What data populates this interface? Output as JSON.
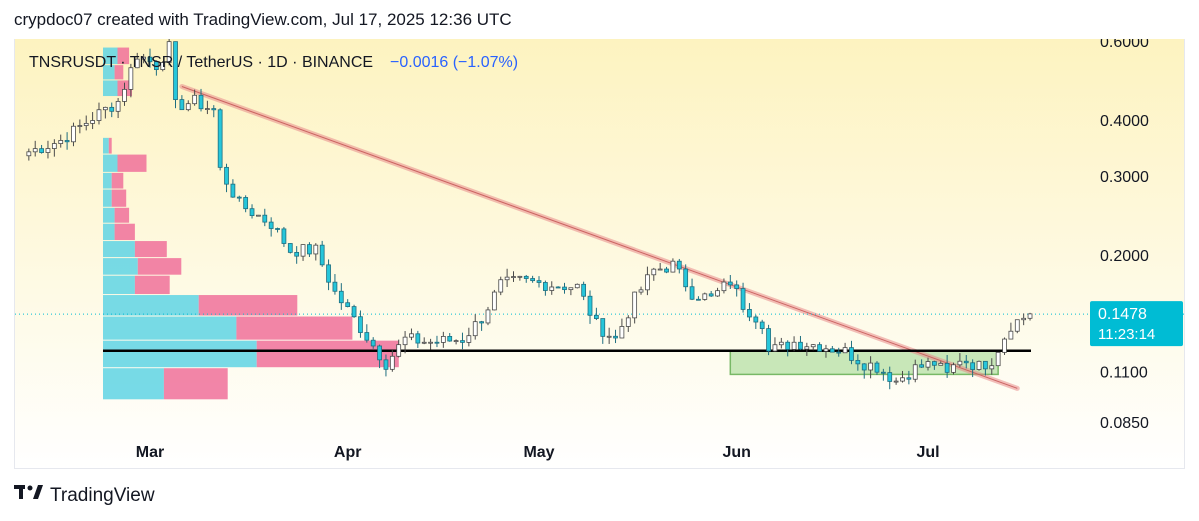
{
  "header": {
    "caption": "crypdoc07 created with TradingView.com, Jul 17, 2025 12:36 UTC"
  },
  "symbol": {
    "text": "TNSRUSDT · TNSR / TetherUS · 1D · BINANCE",
    "change": "−0.0016 (−1.07%)"
  },
  "price_tag": {
    "price": "0.1478",
    "countdown": "11:23:14"
  },
  "footer": {
    "brand": "TradingView"
  },
  "colors": {
    "up": "#ffffff",
    "up_border": "#4a4a4a",
    "down": "#26c6da",
    "down_border": "#1e6e80",
    "bg_top": "#fdf3c0",
    "bg_bottom": "#ffffff",
    "trendline": "#e88b8b",
    "support": "#000000",
    "zone_fill": "#b6e0a5",
    "zone_stroke": "#78b866",
    "vp_up": "#5fd4e4",
    "vp_down": "#f0709a",
    "price_tag": "#00bcd4"
  },
  "chart_data": {
    "type": "candlestick",
    "scale": "log",
    "y_ticks": [
      "0.6000",
      "0.4000",
      "0.3000",
      "0.2000",
      "0.1478",
      "0.1100",
      "0.0850"
    ],
    "y_range": [
      0.075,
      0.6
    ],
    "x_labels": [
      {
        "label": "Mar",
        "date": "2025-03-01"
      },
      {
        "label": "Apr",
        "date": "2025-04-01"
      },
      {
        "label": "May",
        "date": "2025-05-01"
      },
      {
        "label": "Jun",
        "date": "2025-06-01"
      },
      {
        "label": "Jul",
        "date": "2025-07-01"
      }
    ],
    "last_price": 0.1478,
    "support_level": 0.1225,
    "trendline": {
      "start": {
        "date": "2025-03-06",
        "price": 0.475
      },
      "end": {
        "date": "2025-07-15",
        "price": 0.101
      }
    },
    "zone": {
      "start_date": "2025-05-31",
      "end_date": "2025-07-12",
      "top": 0.1225,
      "bottom": 0.1085
    },
    "volume_profile": [
      {
        "price_low": 0.095,
        "price_high": 0.112,
        "up": 0.21,
        "down": 0.22
      },
      {
        "price_low": 0.112,
        "price_high": 0.129,
        "up": 0.53,
        "down": 0.49
      },
      {
        "price_low": 0.129,
        "price_high": 0.146,
        "up": 0.46,
        "down": 0.4
      },
      {
        "price_low": 0.146,
        "price_high": 0.163,
        "up": 0.33,
        "down": 0.34
      },
      {
        "price_low": 0.163,
        "price_high": 0.18,
        "up": 0.11,
        "down": 0.12
      },
      {
        "price_low": 0.18,
        "price_high": 0.197,
        "up": 0.12,
        "down": 0.15
      },
      {
        "price_low": 0.197,
        "price_high": 0.215,
        "up": 0.11,
        "down": 0.11
      },
      {
        "price_low": 0.215,
        "price_high": 0.235,
        "up": 0.04,
        "down": 0.07
      },
      {
        "price_low": 0.235,
        "price_high": 0.255,
        "up": 0.04,
        "down": 0.05
      },
      {
        "price_low": 0.255,
        "price_high": 0.28,
        "up": 0.03,
        "down": 0.05
      },
      {
        "price_low": 0.28,
        "price_high": 0.305,
        "up": 0.03,
        "down": 0.04
      },
      {
        "price_low": 0.305,
        "price_high": 0.335,
        "up": 0.05,
        "down": 0.1
      },
      {
        "price_low": 0.335,
        "price_high": 0.365,
        "up": 0.02,
        "down": 0.01
      },
      {
        "price_low": 0.45,
        "price_high": 0.49,
        "up": 0.05,
        "down": 0.05
      },
      {
        "price_low": 0.49,
        "price_high": 0.53,
        "up": 0.04,
        "down": 0.03
      },
      {
        "price_low": 0.53,
        "price_high": 0.58,
        "up": 0.05,
        "down": 0.04
      }
    ],
    "anchors": [
      [
        "2025-02-10",
        0.34
      ],
      [
        "2025-02-15",
        0.36
      ],
      [
        "2025-02-20",
        0.405
      ],
      [
        "2025-02-24",
        0.44
      ],
      [
        "2025-02-27",
        0.56
      ],
      [
        "2025-03-02",
        0.53
      ],
      [
        "2025-03-04",
        0.58
      ],
      [
        "2025-03-05",
        0.43
      ],
      [
        "2025-03-08",
        0.44
      ],
      [
        "2025-03-11",
        0.42
      ],
      [
        "2025-03-12",
        0.31
      ],
      [
        "2025-03-15",
        0.26
      ],
      [
        "2025-03-20",
        0.235
      ],
      [
        "2025-03-23",
        0.205
      ],
      [
        "2025-03-27",
        0.205
      ],
      [
        "2025-03-30",
        0.165
      ],
      [
        "2025-04-03",
        0.138
      ],
      [
        "2025-04-07",
        0.115
      ],
      [
        "2025-04-10",
        0.13
      ],
      [
        "2025-04-14",
        0.128
      ],
      [
        "2025-04-19",
        0.13
      ],
      [
        "2025-04-22",
        0.145
      ],
      [
        "2025-04-25",
        0.172
      ],
      [
        "2025-04-28",
        0.175
      ],
      [
        "2025-05-03",
        0.172
      ],
      [
        "2025-05-07",
        0.17
      ],
      [
        "2025-05-10",
        0.14
      ],
      [
        "2025-05-13",
        0.13
      ],
      [
        "2025-05-16",
        0.16
      ],
      [
        "2025-05-19",
        0.185
      ],
      [
        "2025-05-22",
        0.19
      ],
      [
        "2025-05-25",
        0.165
      ],
      [
        "2025-05-28",
        0.16
      ],
      [
        "2025-05-31",
        0.175
      ],
      [
        "2025-06-02",
        0.155
      ],
      [
        "2025-06-05",
        0.142
      ],
      [
        "2025-06-06",
        0.122
      ],
      [
        "2025-06-10",
        0.128
      ],
      [
        "2025-06-14",
        0.126
      ],
      [
        "2025-06-18",
        0.122
      ],
      [
        "2025-06-21",
        0.115
      ],
      [
        "2025-06-23",
        0.113
      ],
      [
        "2025-06-26",
        0.105
      ],
      [
        "2025-06-29",
        0.112
      ],
      [
        "2025-07-02",
        0.115
      ],
      [
        "2025-07-04",
        0.108
      ],
      [
        "2025-07-06",
        0.118
      ],
      [
        "2025-07-09",
        0.113
      ],
      [
        "2025-07-11",
        0.117
      ],
      [
        "2025-07-14",
        0.14
      ],
      [
        "2025-07-17",
        0.148
      ]
    ]
  }
}
